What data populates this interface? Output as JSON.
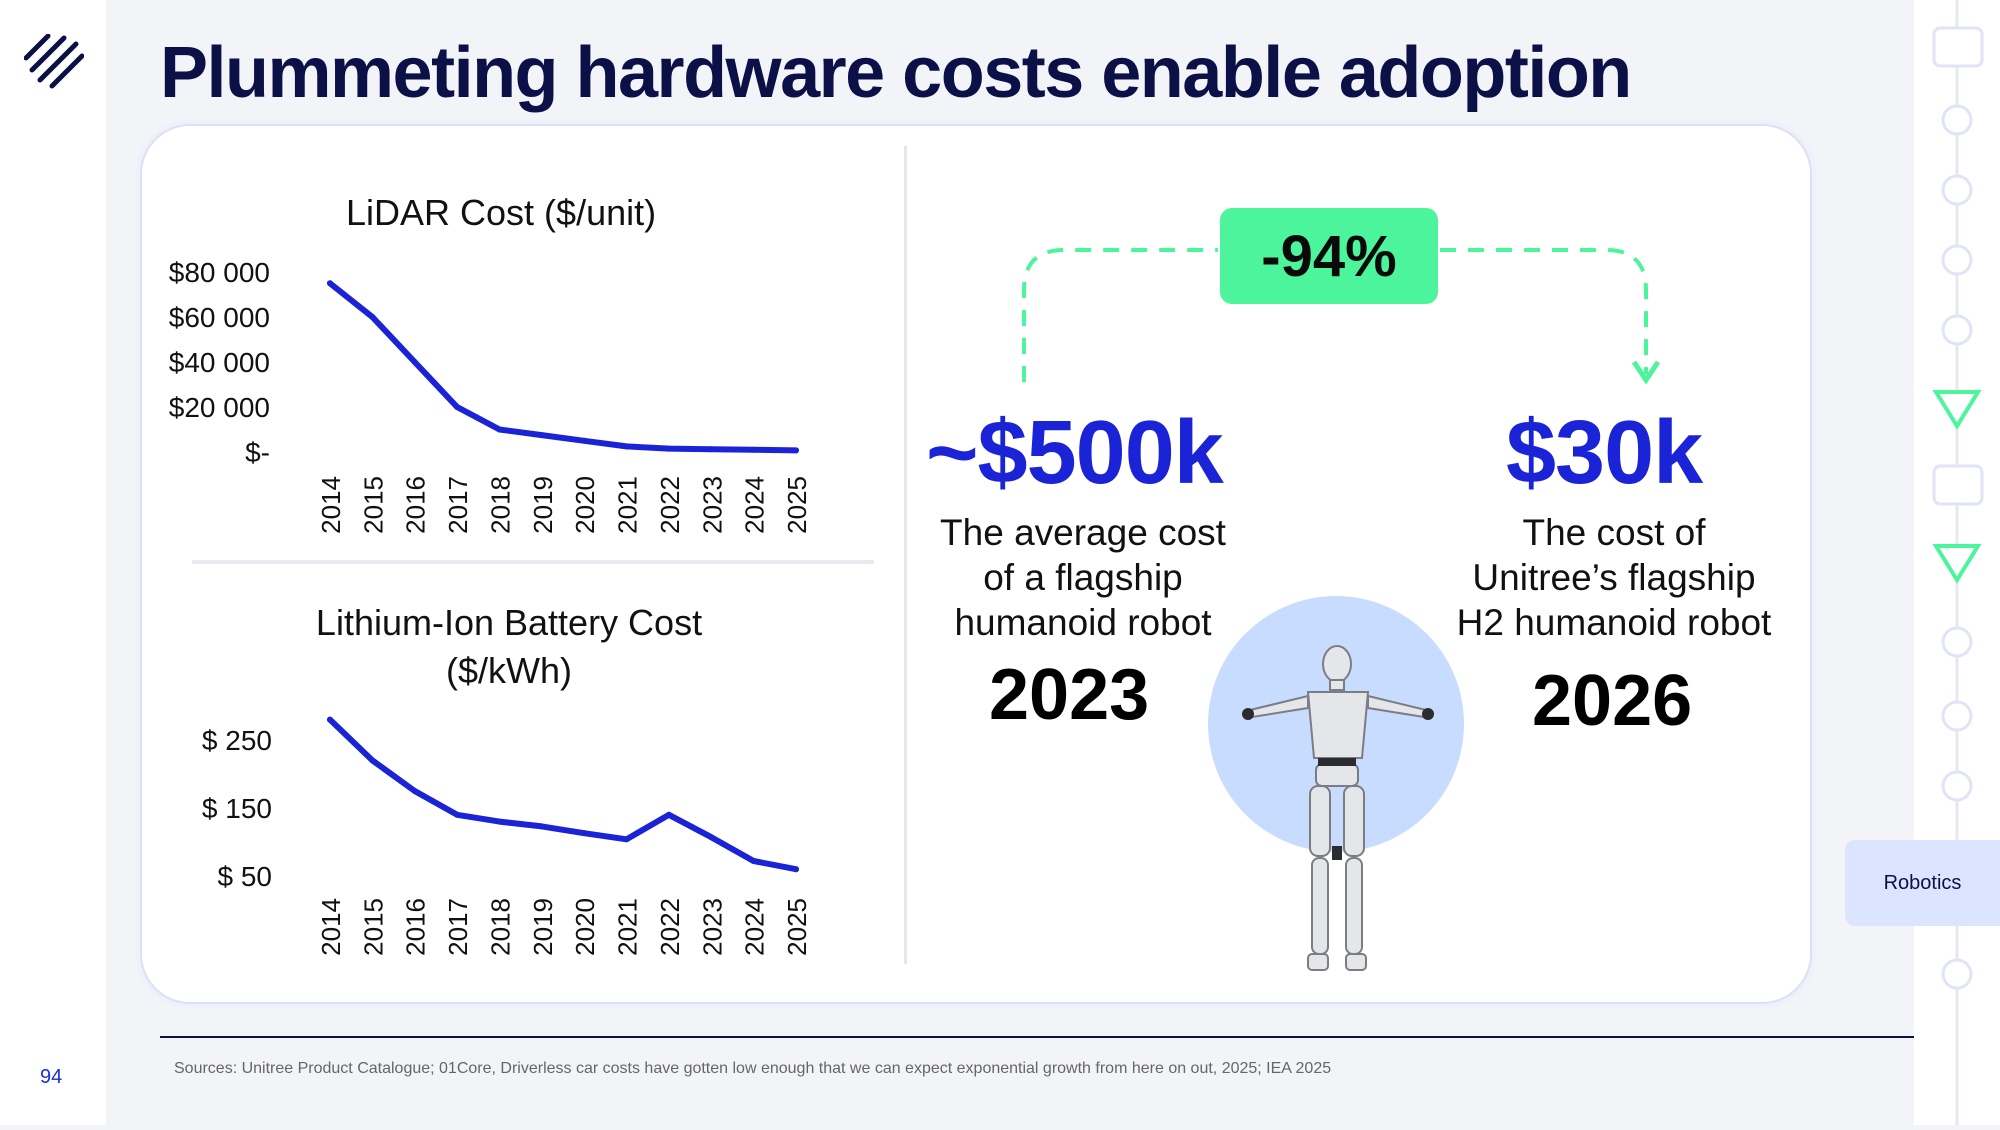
{
  "page": {
    "title": "Plummeting hardware costs enable adoption",
    "page_number": "94",
    "section_tab": "Robotics",
    "source": "Sources: Unitree Product Catalogue; 01Core, Driverless car costs have gotten low enough that we can expect exponential growth from here on out, 2025; IEA 2025"
  },
  "comparison": {
    "change": "-94%",
    "before": {
      "price": "~$500k",
      "desc_lines": [
        "The average cost",
        "of a flagship",
        "humanoid robot"
      ],
      "year": "2023"
    },
    "after": {
      "price": "$30k",
      "desc_lines": [
        "The cost of",
        "Unitree’s flagship",
        "H2 humanoid robot"
      ],
      "year": "2026"
    }
  },
  "colors": {
    "accent": "#1a24d6",
    "badge": "#4cf59c",
    "title": "#0b1147",
    "robot_circle": "#c8dcff"
  },
  "chart_data": [
    {
      "type": "line",
      "title": "LiDAR Cost ($/unit)",
      "x": [
        "2014",
        "2015",
        "2016",
        "2017",
        "2018",
        "2019",
        "2020",
        "2021",
        "2022",
        "2023",
        "2024",
        "2025"
      ],
      "values": [
        75000,
        60000,
        40000,
        20000,
        10000,
        7500,
        5000,
        2500,
        1500,
        1200,
        1000,
        700
      ],
      "ytick_values": [
        0,
        20000,
        40000,
        60000,
        80000
      ],
      "ytick_labels": [
        "$-",
        "$20 000",
        "$40 000",
        "$60 000",
        "$80 000"
      ],
      "ylim": [
        0,
        80000
      ],
      "color": "#1a24d6",
      "grid": false
    },
    {
      "type": "line",
      "title_lines": [
        "Lithium-Ion Battery Cost",
        "($/kWh)"
      ],
      "x": [
        "2014",
        "2015",
        "2016",
        "2017",
        "2018",
        "2019",
        "2020",
        "2021",
        "2022",
        "2023",
        "2024",
        "2025"
      ],
      "values": [
        280,
        220,
        175,
        140,
        130,
        123,
        113,
        104,
        140,
        107,
        72,
        60
      ],
      "ytick_values": [
        50,
        150,
        250
      ],
      "ytick_labels": [
        "$ 50",
        "$ 150",
        "$ 250"
      ],
      "ylim": [
        50,
        250
      ],
      "color": "#1a24d6",
      "grid": false
    }
  ]
}
